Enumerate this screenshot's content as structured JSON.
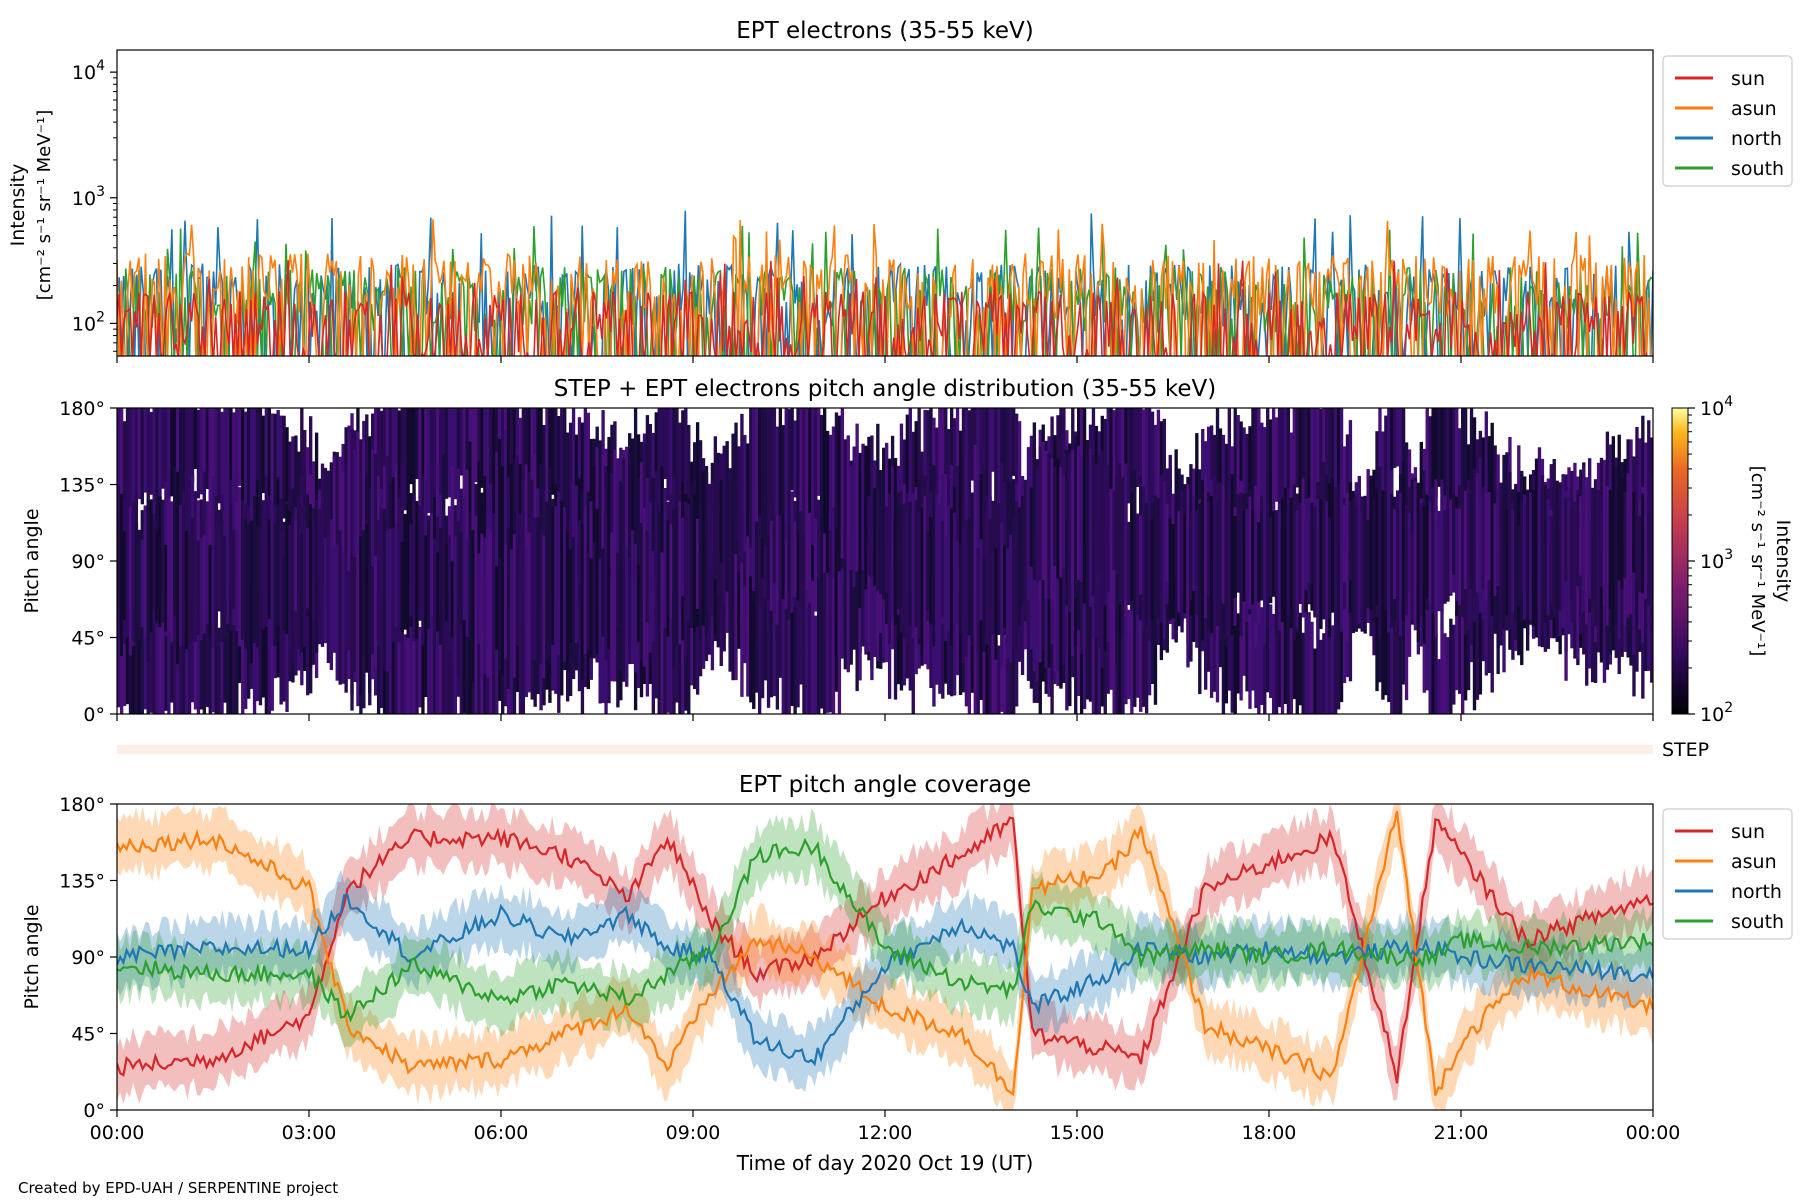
{
  "footer": "Created by EPD-UAH / SERPENTINE project",
  "step_label": "STEP",
  "xlabel": "Time of day 2020 Oct 19 (UT)",
  "x_ticks": [
    "00:00",
    "03:00",
    "06:00",
    "09:00",
    "12:00",
    "15:00",
    "18:00",
    "21:00",
    "00:00"
  ],
  "colors": {
    "sun": "#d62728",
    "asun": "#ff7f0e",
    "north": "#1f77b4",
    "south": "#2ca02c"
  },
  "chart_data": [
    {
      "type": "line",
      "title": "EPT electrons (35-55 keV)",
      "ylabel": [
        "Intensity",
        "[cm⁻² s⁻¹ sr⁻¹ MeV⁻¹]"
      ],
      "yscale": "log",
      "ylim": [
        55,
        15000
      ],
      "y_ticks": [
        {
          "base": "10",
          "exp": "2",
          "value": 100
        },
        {
          "base": "10",
          "exp": "3",
          "value": 1000
        },
        {
          "base": "10",
          "exp": "4",
          "value": 10000
        }
      ],
      "x_range_hours": [
        0,
        24
      ],
      "legend": "right-top",
      "series": [
        {
          "name": "sun",
          "color": "#d62728",
          "typical": 90,
          "peak": 320
        },
        {
          "name": "asun",
          "color": "#ff7f0e",
          "typical": 180,
          "peak": 700
        },
        {
          "name": "north",
          "color": "#1f77b4",
          "typical": 150,
          "peak": 800
        },
        {
          "name": "south",
          "color": "#2ca02c",
          "typical": 140,
          "peak": 600
        }
      ]
    },
    {
      "type": "heatmap",
      "title": "STEP + EPT electrons pitch angle distribution (35-55 keV)",
      "ylabel": "Pitch angle",
      "ylim": [
        0,
        180
      ],
      "y_ticks": [
        "0°",
        "45°",
        "90°",
        "135°",
        "180°"
      ],
      "colorbar": {
        "label": "Intensity",
        "units": "[cm⁻² s⁻¹ sr⁻¹ MeV⁻¹]",
        "scale": "log",
        "range": [
          100,
          10000
        ],
        "ticks": [
          {
            "base": "10",
            "exp": "2"
          },
          {
            "base": "10",
            "exp": "3"
          },
          {
            "base": "10",
            "exp": "4"
          }
        ]
      },
      "typical_intensity": 120
    },
    {
      "type": "line",
      "title": "EPT pitch angle coverage",
      "ylabel": "Pitch angle",
      "ylim": [
        0,
        180
      ],
      "y_ticks": [
        "0°",
        "45°",
        "90°",
        "135°",
        "180°"
      ],
      "legend": "right-top",
      "x": [
        0,
        1.5,
        3.0,
        3.6,
        4.6,
        6.0,
        7.0,
        8.0,
        8.6,
        9.3,
        10.0,
        10.9,
        12.0,
        13.2,
        14.0,
        14.3,
        15.5,
        16.0,
        17.0,
        18.0,
        19.0,
        20.0,
        20.6,
        21.0,
        22.0,
        24.0
      ],
      "series": [
        {
          "name": "sun",
          "color": "#d62728",
          "values": [
            25,
            30,
            55,
            130,
            160,
            160,
            150,
            125,
            160,
            110,
            80,
            90,
            125,
            150,
            170,
            45,
            35,
            30,
            130,
            145,
            160,
            20,
            170,
            150,
            100,
            125
          ]
        },
        {
          "name": "asun",
          "color": "#ff7f0e",
          "values": [
            155,
            160,
            130,
            50,
            25,
            30,
            45,
            60,
            25,
            70,
            100,
            90,
            60,
            45,
            10,
            130,
            140,
            165,
            50,
            35,
            20,
            175,
            10,
            40,
            80,
            60
          ]
        },
        {
          "name": "north",
          "color": "#1f77b4",
          "values": [
            90,
            95,
            95,
            125,
            90,
            115,
            100,
            115,
            95,
            90,
            40,
            30,
            85,
            110,
            95,
            60,
            80,
            95,
            90,
            95,
            90,
            95,
            95,
            90,
            85,
            80
          ]
        },
        {
          "name": "south",
          "color": "#2ca02c",
          "values": [
            85,
            80,
            80,
            55,
            85,
            65,
            75,
            65,
            80,
            95,
            150,
            155,
            95,
            75,
            70,
            120,
            110,
            90,
            95,
            90,
            95,
            90,
            90,
            100,
            95,
            100
          ]
        }
      ]
    }
  ]
}
